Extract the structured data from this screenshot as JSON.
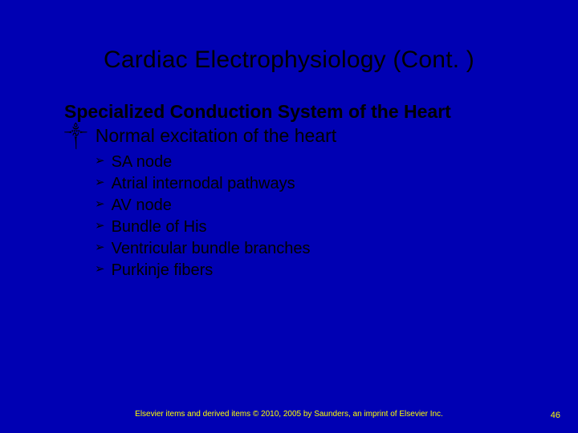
{
  "colors": {
    "background": "#0000b3",
    "title": "#000000",
    "body_text": "#000000",
    "footer_text": "#ffff00",
    "pagenum_text": "#ffff00"
  },
  "typography": {
    "title_fontsize": 30,
    "subtitle_fontsize": 23,
    "l1_fontsize": 23,
    "l2_fontsize": 20,
    "footer_fontsize": 10,
    "family": "Arial"
  },
  "title": "Cardiac Electrophysiology (Cont. )",
  "subtitle": "Specialized Conduction System of the Heart",
  "bullets_l1": [
    {
      "marker": "༒",
      "text": "Normal excitation of the heart"
    }
  ],
  "bullets_l2": [
    {
      "marker": "➢",
      "text": "SA node"
    },
    {
      "marker": "➢",
      "text": "Atrial internodal pathways"
    },
    {
      "marker": "➢",
      "text": "AV node"
    },
    {
      "marker": "➢",
      "text": "Bundle of His"
    },
    {
      "marker": "➢",
      "text": "Ventricular bundle branches"
    },
    {
      "marker": "➢",
      "text": "Purkinje fibers"
    }
  ],
  "footer": "Elsevier items and derived items © 2010, 2005 by Saunders, an imprint of Elsevier Inc.",
  "page_number": "46"
}
